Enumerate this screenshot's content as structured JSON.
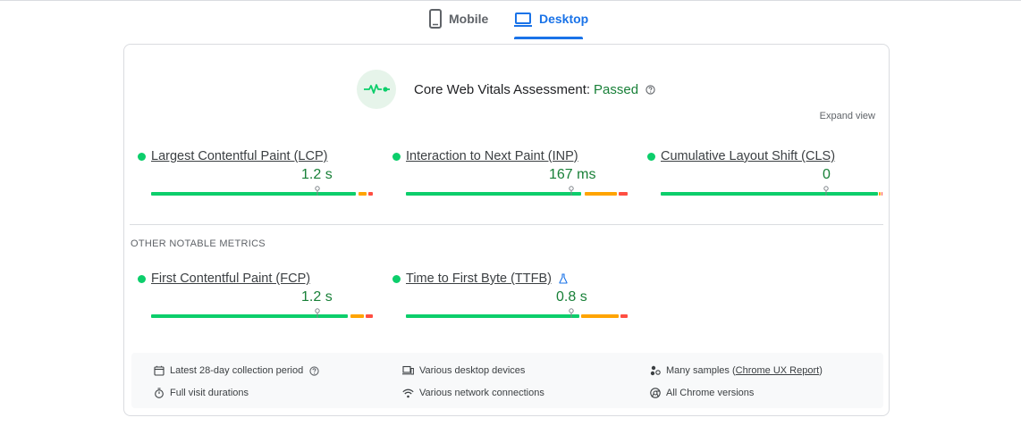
{
  "tabs": {
    "mobile_label": "Mobile",
    "desktop_label": "Desktop",
    "active": "desktop"
  },
  "assessment": {
    "title": "Core Web Vitals Assessment:",
    "status": "Passed",
    "expand_label": "Expand view"
  },
  "core_metrics": [
    {
      "name": "Largest Contentful Paint (LCP)",
      "value": "1.2 s",
      "status": "good"
    },
    {
      "name": "Interaction to Next Paint (INP)",
      "value": "167 ms",
      "status": "good"
    },
    {
      "name": "Cumulative Layout Shift (CLS)",
      "value": "0",
      "status": "good"
    }
  ],
  "other_metrics": {
    "title": "OTHER NOTABLE METRICS",
    "items": [
      {
        "name": "First Contentful Paint (FCP)",
        "value": "1.2 s",
        "status": "good"
      },
      {
        "name": "Time to First Byte (TTFB)",
        "value": "0.8 s",
        "status": "good",
        "experimental": true
      }
    ]
  },
  "footer": {
    "collection_period": "Latest 28-day collection period",
    "visit_durations": "Full visit durations",
    "devices": "Various desktop devices",
    "connections": "Various network connections",
    "samples_prefix": "Many samples (",
    "samples_link": "Chrome UX Report",
    "samples_suffix": ")",
    "versions": "All Chrome versions"
  },
  "colors": {
    "good": "#0cce6b",
    "average": "#ffa400",
    "poor": "#ff4e42",
    "accent": "#1a73e8",
    "passed": "#188038"
  }
}
